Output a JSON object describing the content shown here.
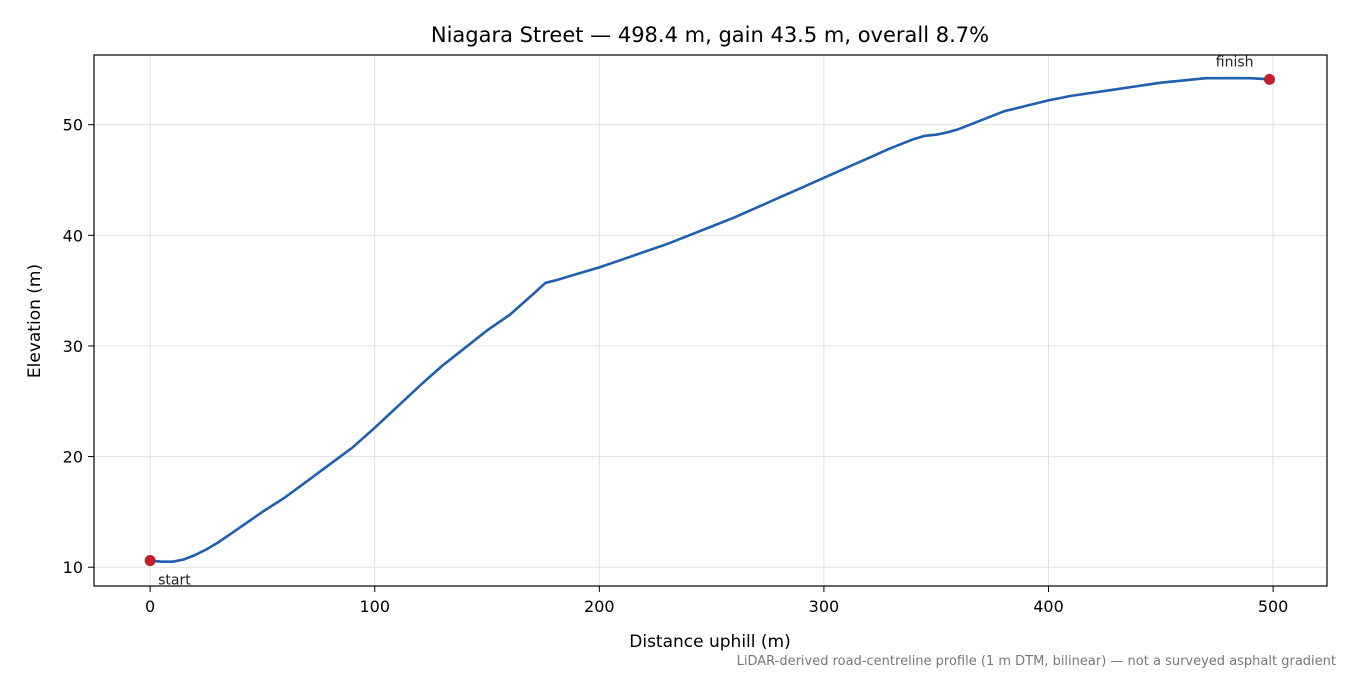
{
  "chart_data": {
    "type": "line",
    "title": "Niagara Street — 498.4 m, gain 43.5 m, overall 8.7%",
    "xlabel": "Distance uphill (m)",
    "ylabel": "Elevation (m)",
    "xlim": [
      -25,
      524
    ],
    "ylim": [
      8.3,
      56.3
    ],
    "x_ticks": [
      0,
      100,
      200,
      300,
      400,
      500
    ],
    "y_ticks": [
      10,
      20,
      30,
      40,
      50
    ],
    "grid": true,
    "line_color": "#1f5fad",
    "marker_color": "#c0202a",
    "series": [
      {
        "x": [
          0,
          5,
          10,
          15,
          20,
          25,
          30,
          40,
          50,
          60,
          70,
          80,
          90,
          100,
          110,
          120,
          130,
          140,
          150,
          160,
          170,
          176,
          180,
          190,
          200,
          210,
          220,
          230,
          240,
          250,
          260,
          270,
          280,
          290,
          300,
          310,
          320,
          330,
          340,
          345,
          350,
          355,
          360,
          370,
          380,
          390,
          400,
          410,
          420,
          430,
          440,
          450,
          460,
          470,
          480,
          490,
          498.4
        ],
        "y": [
          10.6,
          10.5,
          10.5,
          10.7,
          11.1,
          11.6,
          12.2,
          13.6,
          15.0,
          16.3,
          17.8,
          19.3,
          20.8,
          22.6,
          24.5,
          26.4,
          28.2,
          29.8,
          31.4,
          32.8,
          34.6,
          35.7,
          35.9,
          36.5,
          37.1,
          37.8,
          38.5,
          39.2,
          40.0,
          40.8,
          41.6,
          42.5,
          43.4,
          44.3,
          45.2,
          46.1,
          47.0,
          47.9,
          48.7,
          49.0,
          49.1,
          49.3,
          49.6,
          50.4,
          51.2,
          51.7,
          52.2,
          52.6,
          52.9,
          53.2,
          53.5,
          53.8,
          54.0,
          54.2,
          54.2,
          54.2,
          54.1
        ]
      }
    ],
    "points": [
      {
        "label": "start",
        "x": 0,
        "y": 10.6
      },
      {
        "label": "finish",
        "x": 498.4,
        "y": 54.1
      }
    ],
    "footnote": "LiDAR-derived road-centreline profile (1 m DTM, bilinear) — not a surveyed asphalt gradient"
  }
}
